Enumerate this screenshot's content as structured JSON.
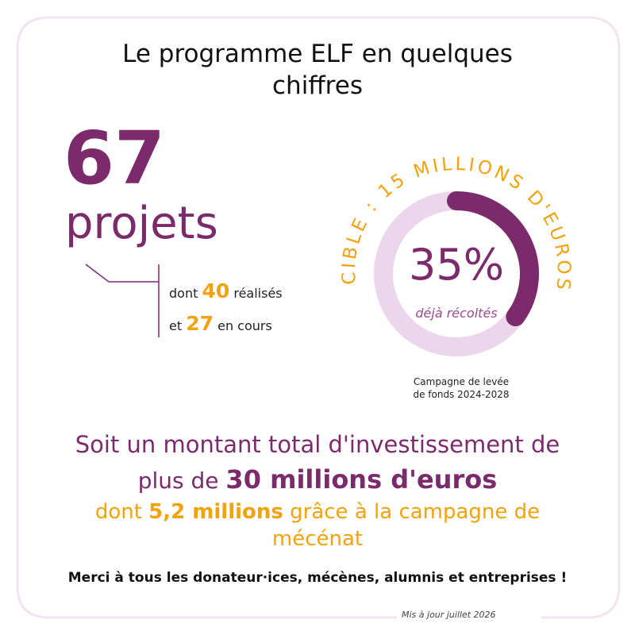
{
  "title": "Le programme ELF en quelques chiffres",
  "projects": {
    "count": 67,
    "label": "projets",
    "done_prefix": "dont",
    "done": 40,
    "done_suffix": "réalisés",
    "ongoing_prefix": "et",
    "ongoing": 27,
    "ongoing_suffix": "en cours"
  },
  "campaign": {
    "target": "CIBLE : 15 MILLIONS D'EUROS",
    "percent": 35,
    "percent_label": "35%",
    "percent_caption": "déjà récoltés",
    "note_line1": "Campagne de levée",
    "note_line2": "de fonds 2024-2028"
  },
  "total": {
    "line1": "Soit un montant total d'investissement de",
    "prefix": "plus de",
    "amount": "30 millions d'euros",
    "campaign_prefix": "dont",
    "campaign_amount": "5,2 millions",
    "campaign_suffix": "grâce à la campagne de mécénat"
  },
  "thanks": "Merci à tous les donateur·ices, mécènes, alumnis et entreprises !",
  "updated": "Mis à jour juillet 2026"
}
